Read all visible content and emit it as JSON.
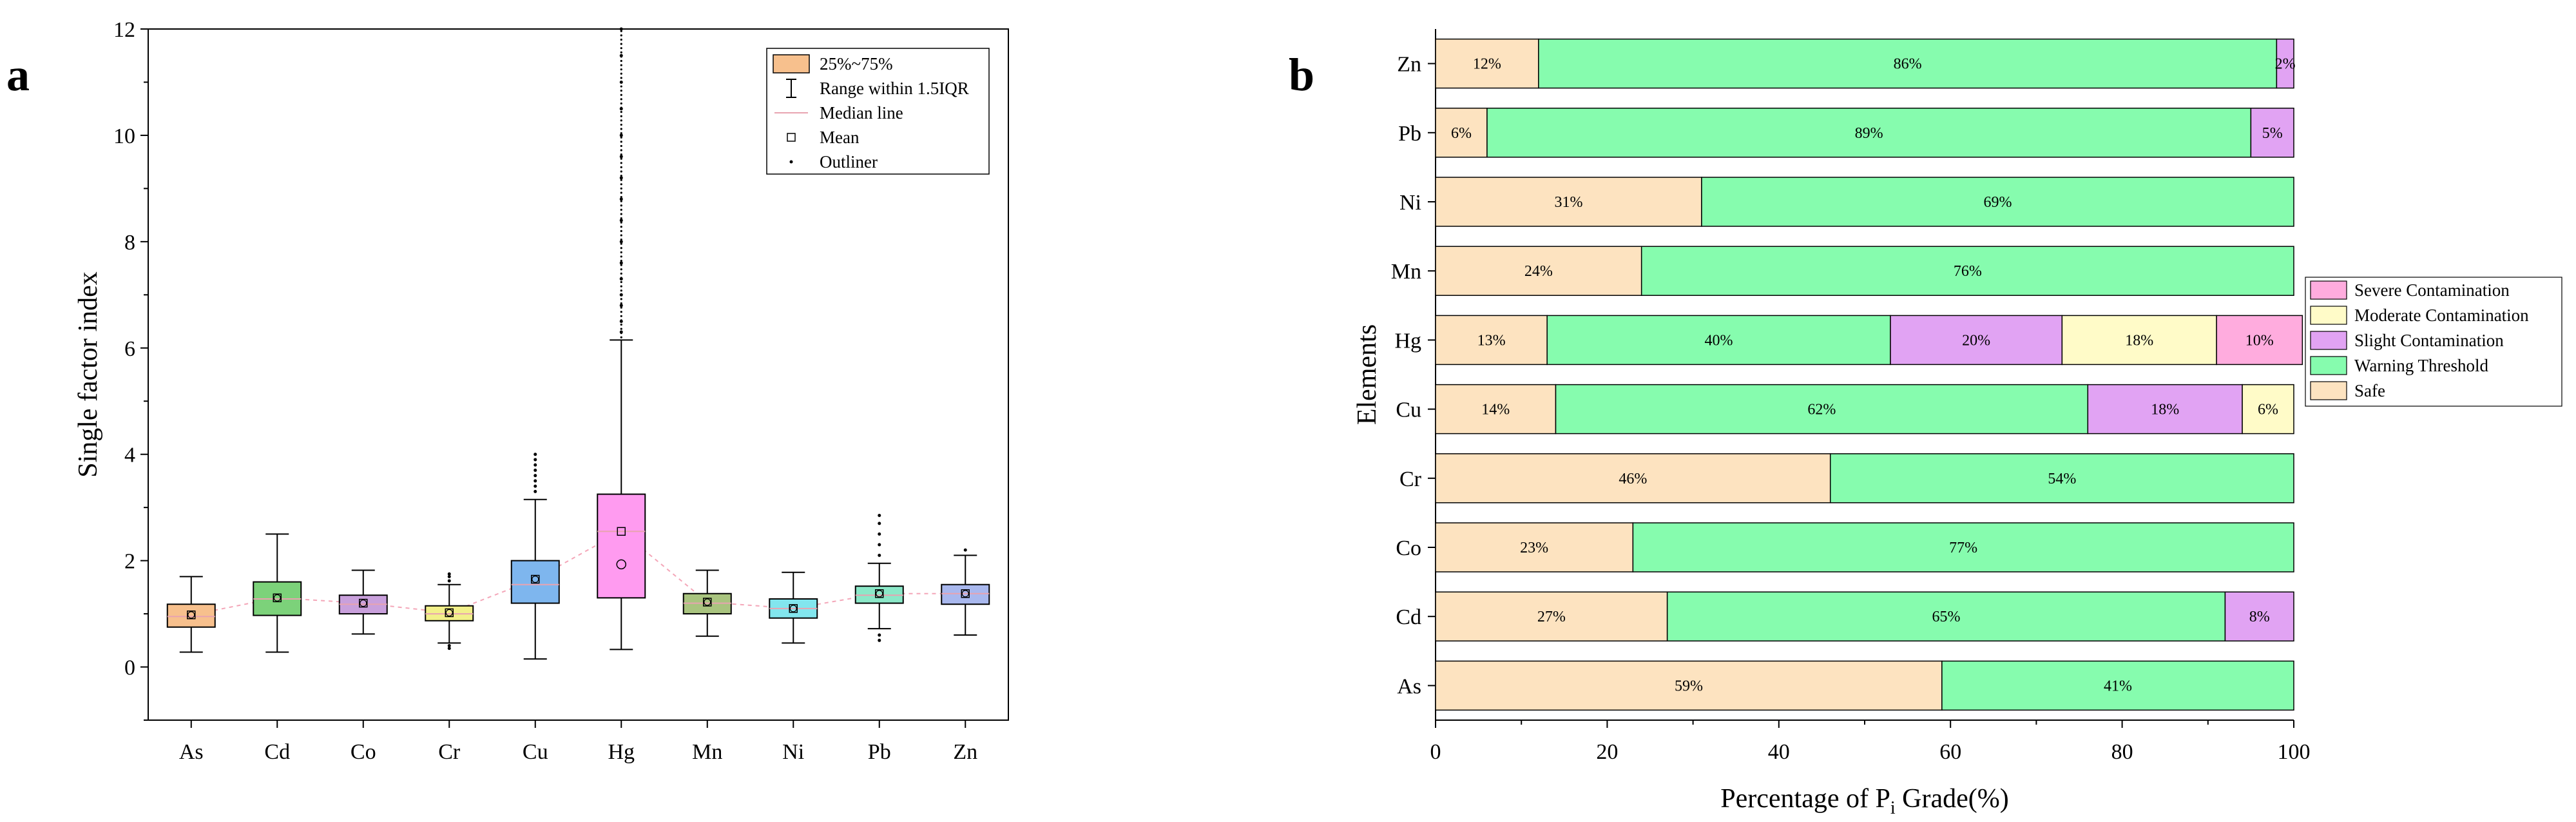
{
  "panels": {
    "a_label": "a",
    "b_label": "b"
  },
  "chart_data": [
    {
      "type": "box",
      "panel": "a",
      "title": "",
      "xlabel": "",
      "ylabel": "Single factor index",
      "ylim": [
        -1,
        12
      ],
      "yticks": [
        0,
        2,
        4,
        6,
        8,
        10,
        12
      ],
      "categories": [
        "As",
        "Cd",
        "Co",
        "Cr",
        "Cu",
        "Hg",
        "Mn",
        "Ni",
        "Pb",
        "Zn"
      ],
      "series": [
        {
          "name": "As",
          "color": "#F7C08D",
          "whisker_low": 0.28,
          "q1": 0.75,
          "median": 0.95,
          "q3": 1.18,
          "whisker_high": 1.7,
          "mean": 0.98,
          "outliers": []
        },
        {
          "name": "Cd",
          "color": "#7CD27A",
          "whisker_low": 0.28,
          "q1": 0.97,
          "median": 1.28,
          "q3": 1.6,
          "whisker_high": 2.5,
          "mean": 1.3,
          "outliers": []
        },
        {
          "name": "Co",
          "color": "#C9A0DC",
          "whisker_low": 0.62,
          "q1": 1.0,
          "median": 1.18,
          "q3": 1.35,
          "whisker_high": 1.82,
          "mean": 1.2,
          "outliers": []
        },
        {
          "name": "Cr",
          "color": "#F2F08A",
          "whisker_low": 0.45,
          "q1": 0.87,
          "median": 1.0,
          "q3": 1.15,
          "whisker_high": 1.55,
          "mean": 1.02,
          "outliers": [
            0.35,
            0.4,
            1.62,
            1.7,
            1.75
          ]
        },
        {
          "name": "Cu",
          "color": "#7EB6EE",
          "whisker_low": 0.15,
          "q1": 1.2,
          "median": 1.55,
          "q3": 2.0,
          "whisker_high": 3.15,
          "mean": 1.65,
          "outliers": [
            3.3,
            3.4,
            3.5,
            3.6,
            3.7,
            3.8,
            3.9,
            4.0
          ]
        },
        {
          "name": "Hg",
          "color": "#FF9BF0",
          "whisker_low": 0.33,
          "q1": 1.3,
          "median": 2.55,
          "q3": 3.25,
          "whisker_high": 6.15,
          "mean": 2.55,
          "outliers": [
            6.3,
            6.5,
            6.8,
            7.0,
            7.3,
            7.6,
            8.0,
            8.4,
            8.8,
            9.2,
            9.6,
            10.0,
            10.5,
            11.0,
            11.5,
            12.0
          ]
        },
        {
          "name": "Mn",
          "color": "#A9C47F",
          "whisker_low": 0.58,
          "q1": 1.0,
          "median": 1.2,
          "q3": 1.38,
          "whisker_high": 1.82,
          "mean": 1.22,
          "outliers": []
        },
        {
          "name": "Ni",
          "color": "#82E6EE",
          "whisker_low": 0.45,
          "q1": 0.92,
          "median": 1.1,
          "q3": 1.28,
          "whisker_high": 1.78,
          "mean": 1.1,
          "outliers": []
        },
        {
          "name": "Pb",
          "color": "#8BE8C8",
          "whisker_low": 0.72,
          "q1": 1.2,
          "median": 1.35,
          "q3": 1.52,
          "whisker_high": 1.95,
          "mean": 1.38,
          "outliers": [
            0.5,
            0.6,
            2.1,
            2.3,
            2.5,
            2.7,
            2.85
          ]
        },
        {
          "name": "Zn",
          "color": "#A9B8EE",
          "whisker_low": 0.6,
          "q1": 1.18,
          "median": 1.38,
          "q3": 1.55,
          "whisker_high": 2.1,
          "mean": 1.38,
          "outliers": [
            2.2
          ]
        }
      ],
      "hg_extra_mean": 1.93,
      "legend": {
        "position": "top-right",
        "entries": [
          "25%~75%",
          "Range within 1.5IQR",
          "Median line",
          "Mean",
          "Outliner"
        ]
      }
    },
    {
      "type": "stacked-bar-horizontal",
      "panel": "b",
      "title": "",
      "xlabel": "Percentage of P",
      "xlabel_sub": "i",
      "xlabel_suffix": " Grade(%)",
      "ylabel": "Elements",
      "xlim": [
        0,
        100
      ],
      "xticks": [
        0,
        20,
        40,
        60,
        80,
        100
      ],
      "categories": [
        "Zn",
        "Pb",
        "Ni",
        "Mn",
        "Hg",
        "Cu",
        "Cr",
        "Co",
        "Cd",
        "As"
      ],
      "grades": [
        {
          "name": "Safe",
          "color": "#FDE3C0"
        },
        {
          "name": "Warning Threshold",
          "color": "#86FCAE"
        },
        {
          "name": "Slight Contamination",
          "color": "#E1A3F3"
        },
        {
          "name": "Moderate Contamination",
          "color": "#FFFBC8"
        },
        {
          "name": "Severe Contamination",
          "color": "#FFACDE"
        }
      ],
      "bars": {
        "Zn": [
          {
            "grade": "Safe",
            "value": 12,
            "label": "12%"
          },
          {
            "grade": "Warning Threshold",
            "value": 86,
            "label": "86%"
          },
          {
            "grade": "Slight Contamination",
            "value": 2,
            "label": "2%"
          }
        ],
        "Pb": [
          {
            "grade": "Safe",
            "value": 6,
            "label": "6%"
          },
          {
            "grade": "Warning Threshold",
            "value": 89,
            "label": "89%"
          },
          {
            "grade": "Slight Contamination",
            "value": 5,
            "label": "5%"
          }
        ],
        "Ni": [
          {
            "grade": "Safe",
            "value": 31,
            "label": "31%"
          },
          {
            "grade": "Warning Threshold",
            "value": 69,
            "label": "69%"
          }
        ],
        "Mn": [
          {
            "grade": "Safe",
            "value": 24,
            "label": "24%"
          },
          {
            "grade": "Warning Threshold",
            "value": 76,
            "label": "76%"
          }
        ],
        "Hg": [
          {
            "grade": "Safe",
            "value": 13,
            "label": "13%"
          },
          {
            "grade": "Warning Threshold",
            "value": 40,
            "label": "40%"
          },
          {
            "grade": "Slight Contamination",
            "value": 20,
            "label": "20%"
          },
          {
            "grade": "Moderate Contamination",
            "value": 18,
            "label": "18%"
          },
          {
            "grade": "Severe Contamination",
            "value": 10,
            "label": "10%"
          }
        ],
        "Cu": [
          {
            "grade": "Safe",
            "value": 14,
            "label": "14%"
          },
          {
            "grade": "Warning Threshold",
            "value": 62,
            "label": "62%"
          },
          {
            "grade": "Slight Contamination",
            "value": 18,
            "label": "18%"
          },
          {
            "grade": "Moderate Contamination",
            "value": 6,
            "label": "6%"
          }
        ],
        "Cr": [
          {
            "grade": "Safe",
            "value": 46,
            "label": "46%"
          },
          {
            "grade": "Warning Threshold",
            "value": 54,
            "label": "54%"
          }
        ],
        "Co": [
          {
            "grade": "Safe",
            "value": 23,
            "label": "23%"
          },
          {
            "grade": "Warning Threshold",
            "value": 77,
            "label": "77%"
          }
        ],
        "Cd": [
          {
            "grade": "Safe",
            "value": 27,
            "label": "27%"
          },
          {
            "grade": "Warning Threshold",
            "value": 65,
            "label": "65%"
          },
          {
            "grade": "Slight Contamination",
            "value": 8,
            "label": "8%"
          }
        ],
        "As": [
          {
            "grade": "Safe",
            "value": 59,
            "label": "59%"
          },
          {
            "grade": "Warning Threshold",
            "value": 41,
            "label": "41%"
          }
        ]
      },
      "legend": {
        "position": "right",
        "entries": [
          "Severe Contamination",
          "Moderate Contamination",
          "Slight Contamination",
          "Warning Threshold",
          "Safe"
        ]
      }
    }
  ]
}
